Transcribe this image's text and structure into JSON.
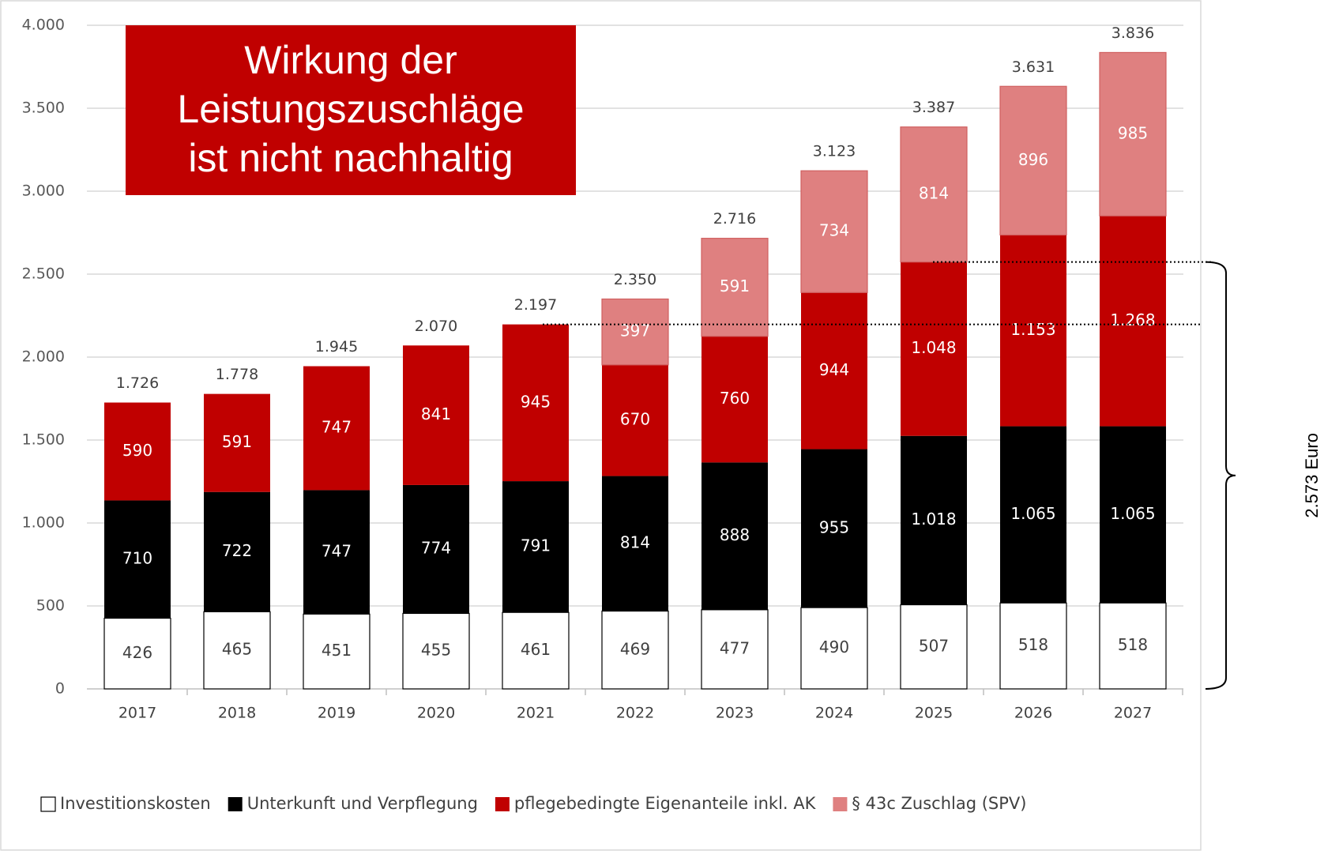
{
  "chart_data": {
    "type": "stacked_bar",
    "categories": [
      "2017",
      "2018",
      "2019",
      "2020",
      "2021",
      "2022",
      "2023",
      "2024",
      "2025",
      "2026",
      "2027"
    ],
    "series": [
      {
        "name": "Investitionskosten",
        "color": "#ffffff",
        "values": [
          426,
          465,
          451,
          455,
          461,
          469,
          477,
          490,
          507,
          518,
          518
        ]
      },
      {
        "name": "Unterkunft und Verpflegung",
        "color": "#000000",
        "values": [
          710,
          722,
          747,
          774,
          791,
          814,
          888,
          955,
          1018,
          1065,
          1065
        ],
        "value_labels": [
          "710",
          "722",
          "747",
          "774",
          "791",
          "814",
          "888",
          "955",
          "1.018",
          "1.065",
          "1.065"
        ]
      },
      {
        "name": "pflegebedingte Eigenanteile inkl. AK",
        "color": "#c00000",
        "values": [
          590,
          591,
          747,
          841,
          945,
          670,
          760,
          944,
          1048,
          1153,
          1268
        ],
        "value_labels": [
          "590",
          "591",
          "747",
          "841",
          "945",
          "670",
          "760",
          "944",
          "1.048",
          "1.153",
          "1.268"
        ]
      },
      {
        "name": "§ 43c Zuschlag (SPV)",
        "color": "#df8080",
        "values": [
          null,
          null,
          null,
          null,
          null,
          397,
          591,
          734,
          814,
          896,
          985
        ]
      }
    ],
    "totals": {
      "values": [
        1726,
        1778,
        1945,
        2070,
        2197,
        2350,
        2716,
        3123,
        3387,
        3631,
        3836
      ],
      "value_labels": [
        "1.726",
        "1.778",
        "1.945",
        "2.070",
        "2.197",
        "2.350",
        "2.716",
        "3.123",
        "3.387",
        "3.631",
        "3.836"
      ]
    },
    "ylim": [
      0,
      4000
    ],
    "yticks": [
      0,
      500,
      {
        "value": 1000,
        "label": "1.000"
      },
      {
        "value": 1500,
        "label": "1.500"
      },
      {
        "value": 2000,
        "label": "2.000"
      },
      {
        "value": 2500,
        "label": "2.500"
      },
      {
        "value": 3000,
        "label": "3.000"
      },
      {
        "value": 3500,
        "label": "3.500"
      },
      {
        "value": 4000,
        "label": "4.000"
      }
    ],
    "grid": true,
    "legend": "bottom",
    "title_box": [
      "Wirkung der",
      "Leistungszuschläge",
      "ist nicht nachhaltig"
    ],
    "brace": {
      "label": "2.573 Euro",
      "value": 2573
    },
    "dotted_lines": [
      2573,
      2197
    ]
  }
}
